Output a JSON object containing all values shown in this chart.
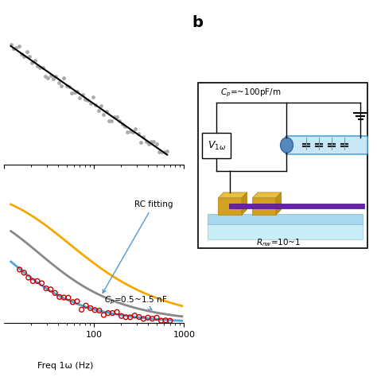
{
  "bg_color": "#ffffff",
  "top_plot": {
    "xlim": [
      10,
      1000
    ],
    "data_color": "#aaaaaa",
    "line_color": "#000000"
  },
  "bottom_plot": {
    "xlim": [
      10,
      1000
    ],
    "yellow_color": "#f5a800",
    "gray_color": "#888888",
    "blue_color": "#4da6d4",
    "red_color": "#cc0000",
    "arrow_color": "#5599cc"
  },
  "xlabel": "Freq 1ω (Hz)",
  "panel_b_label": "b",
  "panel_b": {
    "cp_text": "C_p=~100pF/m",
    "rnw_text": "R_nw=10~1",
    "v1w_text": "V_{1ω}",
    "cable_color": "#4da6d4",
    "nanowire_color": "#6622aa",
    "electrode_color": "#d4a020",
    "substrate_color1": "#c8eef8",
    "substrate_color2": "#a8d8f0"
  }
}
